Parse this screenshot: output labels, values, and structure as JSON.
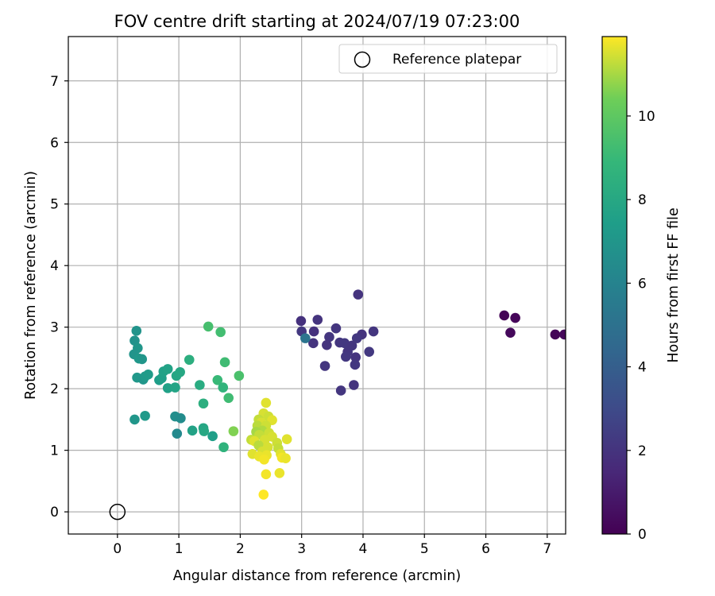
{
  "chart_data": {
    "type": "scatter",
    "title": "FOV centre drift starting at 2024/07/19 07:23:00",
    "xlabel": "Angular distance from reference (arcmin)",
    "ylabel": "Rotation from reference (arcmin)",
    "xlim": [
      -0.8,
      7.3
    ],
    "ylim": [
      -0.36,
      7.72
    ],
    "xticks": [
      0,
      1,
      2,
      3,
      4,
      5,
      6,
      7
    ],
    "yticks": [
      0,
      1,
      2,
      3,
      4,
      5,
      6,
      7
    ],
    "grid": true,
    "legend": {
      "placement": "top-right",
      "entries": [
        "Reference platepar"
      ]
    },
    "reference_point": {
      "name": "Reference platepar",
      "x": 0,
      "y": 0,
      "marker": "open-circle"
    },
    "colorbar": {
      "label": "Hours from first FF file",
      "colormap": "viridis",
      "range": [
        0,
        11.9
      ],
      "ticks": [
        0,
        2,
        4,
        6,
        8,
        10
      ]
    },
    "series": [
      {
        "points": [
          {
            "x": 6.3,
            "y": 3.19,
            "c": 0.1
          },
          {
            "x": 6.48,
            "y": 3.15,
            "c": 0.2
          },
          {
            "x": 6.4,
            "y": 2.91,
            "c": 0.3
          },
          {
            "x": 7.13,
            "y": 2.88,
            "c": 0.15
          },
          {
            "x": 7.28,
            "y": 2.88,
            "c": 0.25
          },
          {
            "x": 3.92,
            "y": 3.53,
            "c": 2.0
          },
          {
            "x": 2.99,
            "y": 3.1,
            "c": 1.9
          },
          {
            "x": 3.26,
            "y": 3.12,
            "c": 2.0
          },
          {
            "x": 3.56,
            "y": 2.98,
            "c": 2.1
          },
          {
            "x": 3.0,
            "y": 2.93,
            "c": 2.2
          },
          {
            "x": 3.2,
            "y": 2.93,
            "c": 1.9
          },
          {
            "x": 4.17,
            "y": 2.93,
            "c": 2.1
          },
          {
            "x": 3.98,
            "y": 2.88,
            "c": 2.0
          },
          {
            "x": 3.45,
            "y": 2.84,
            "c": 2.1
          },
          {
            "x": 3.9,
            "y": 2.82,
            "c": 2.2
          },
          {
            "x": 3.19,
            "y": 2.74,
            "c": 2.0
          },
          {
            "x": 3.62,
            "y": 2.75,
            "c": 2.1
          },
          {
            "x": 3.7,
            "y": 2.74,
            "c": 2.2
          },
          {
            "x": 3.82,
            "y": 2.7,
            "c": 2.1
          },
          {
            "x": 3.41,
            "y": 2.71,
            "c": 2.0
          },
          {
            "x": 4.1,
            "y": 2.6,
            "c": 2.2
          },
          {
            "x": 3.75,
            "y": 2.6,
            "c": 2.1
          },
          {
            "x": 3.72,
            "y": 2.52,
            "c": 2.2
          },
          {
            "x": 3.88,
            "y": 2.51,
            "c": 2.0
          },
          {
            "x": 3.38,
            "y": 2.37,
            "c": 2.1
          },
          {
            "x": 3.87,
            "y": 2.39,
            "c": 2.2
          },
          {
            "x": 3.85,
            "y": 2.06,
            "c": 2.0
          },
          {
            "x": 3.64,
            "y": 1.97,
            "c": 2.1
          },
          {
            "x": 3.06,
            "y": 2.82,
            "c": 5.2
          },
          {
            "x": 0.31,
            "y": 2.94,
            "c": 6.9
          },
          {
            "x": 0.28,
            "y": 2.78,
            "c": 6.8
          },
          {
            "x": 0.33,
            "y": 2.66,
            "c": 7.0
          },
          {
            "x": 0.27,
            "y": 2.56,
            "c": 6.9
          },
          {
            "x": 0.35,
            "y": 2.49,
            "c": 7.1
          },
          {
            "x": 0.4,
            "y": 2.48,
            "c": 7.0
          },
          {
            "x": 0.32,
            "y": 2.18,
            "c": 7.1
          },
          {
            "x": 0.42,
            "y": 2.15,
            "c": 7.0
          },
          {
            "x": 0.45,
            "y": 2.2,
            "c": 7.2
          },
          {
            "x": 0.5,
            "y": 2.23,
            "c": 7.3
          },
          {
            "x": 0.68,
            "y": 2.14,
            "c": 7.4
          },
          {
            "x": 0.72,
            "y": 2.17,
            "c": 7.5
          },
          {
            "x": 0.75,
            "y": 2.28,
            "c": 7.6
          },
          {
            "x": 0.82,
            "y": 2.32,
            "c": 7.7
          },
          {
            "x": 0.96,
            "y": 2.21,
            "c": 7.9
          },
          {
            "x": 1.02,
            "y": 2.27,
            "c": 8.0
          },
          {
            "x": 0.82,
            "y": 2.01,
            "c": 7.6
          },
          {
            "x": 0.94,
            "y": 2.02,
            "c": 7.8
          },
          {
            "x": 1.17,
            "y": 2.47,
            "c": 8.4
          },
          {
            "x": 0.28,
            "y": 1.5,
            "c": 7.0
          },
          {
            "x": 0.45,
            "y": 1.56,
            "c": 7.2
          },
          {
            "x": 0.94,
            "y": 1.55,
            "c": 6.6
          },
          {
            "x": 1.03,
            "y": 1.52,
            "c": 6.5
          },
          {
            "x": 0.97,
            "y": 1.27,
            "c": 6.3
          },
          {
            "x": 1.22,
            "y": 1.32,
            "c": 7.7
          },
          {
            "x": 1.4,
            "y": 1.36,
            "c": 7.9
          },
          {
            "x": 1.41,
            "y": 1.31,
            "c": 8.0
          },
          {
            "x": 1.34,
            "y": 2.06,
            "c": 8.2
          },
          {
            "x": 1.4,
            "y": 1.76,
            "c": 8.4
          },
          {
            "x": 1.55,
            "y": 1.23,
            "c": 7.5
          },
          {
            "x": 1.48,
            "y": 3.01,
            "c": 9.4
          },
          {
            "x": 1.68,
            "y": 2.92,
            "c": 9.3
          },
          {
            "x": 1.75,
            "y": 2.43,
            "c": 9.2
          },
          {
            "x": 1.63,
            "y": 2.14,
            "c": 9.0
          },
          {
            "x": 1.72,
            "y": 2.02,
            "c": 8.7
          },
          {
            "x": 1.81,
            "y": 1.85,
            "c": 9.2
          },
          {
            "x": 1.98,
            "y": 2.21,
            "c": 9.5
          },
          {
            "x": 1.73,
            "y": 1.05,
            "c": 8.6
          },
          {
            "x": 1.89,
            "y": 1.31,
            "c": 10.6
          },
          {
            "x": 2.42,
            "y": 1.77,
            "c": 11.6
          },
          {
            "x": 2.38,
            "y": 1.6,
            "c": 11.5
          },
          {
            "x": 2.3,
            "y": 1.5,
            "c": 11.3
          },
          {
            "x": 2.46,
            "y": 1.55,
            "c": 11.4
          },
          {
            "x": 2.52,
            "y": 1.49,
            "c": 11.6
          },
          {
            "x": 2.34,
            "y": 1.45,
            "c": 11.5
          },
          {
            "x": 2.28,
            "y": 1.4,
            "c": 11.2
          },
          {
            "x": 2.42,
            "y": 1.4,
            "c": 11.4
          },
          {
            "x": 2.36,
            "y": 1.32,
            "c": 11.1
          },
          {
            "x": 2.26,
            "y": 1.3,
            "c": 11.0
          },
          {
            "x": 2.31,
            "y": 1.25,
            "c": 11.3
          },
          {
            "x": 2.47,
            "y": 1.28,
            "c": 11.4
          },
          {
            "x": 2.52,
            "y": 1.22,
            "c": 11.5
          },
          {
            "x": 2.18,
            "y": 1.17,
            "c": 11.3
          },
          {
            "x": 2.23,
            "y": 1.15,
            "c": 11.6
          },
          {
            "x": 2.4,
            "y": 1.17,
            "c": 11.5
          },
          {
            "x": 2.6,
            "y": 1.12,
            "c": 11.4
          },
          {
            "x": 2.76,
            "y": 1.18,
            "c": 11.6
          },
          {
            "x": 2.3,
            "y": 1.08,
            "c": 11.2
          },
          {
            "x": 2.45,
            "y": 1.05,
            "c": 11.5
          },
          {
            "x": 2.62,
            "y": 1.03,
            "c": 11.3
          },
          {
            "x": 2.36,
            "y": 0.98,
            "c": 11.5
          },
          {
            "x": 2.2,
            "y": 0.94,
            "c": 11.6
          },
          {
            "x": 2.43,
            "y": 0.92,
            "c": 11.7
          },
          {
            "x": 2.66,
            "y": 0.94,
            "c": 11.6
          },
          {
            "x": 2.31,
            "y": 0.9,
            "c": 11.7
          },
          {
            "x": 2.68,
            "y": 0.88,
            "c": 11.8
          },
          {
            "x": 2.74,
            "y": 0.87,
            "c": 11.7
          },
          {
            "x": 2.39,
            "y": 0.85,
            "c": 11.8
          },
          {
            "x": 2.42,
            "y": 0.61,
            "c": 11.8
          },
          {
            "x": 2.64,
            "y": 0.63,
            "c": 11.7
          },
          {
            "x": 2.38,
            "y": 0.28,
            "c": 11.9
          }
        ]
      }
    ]
  }
}
